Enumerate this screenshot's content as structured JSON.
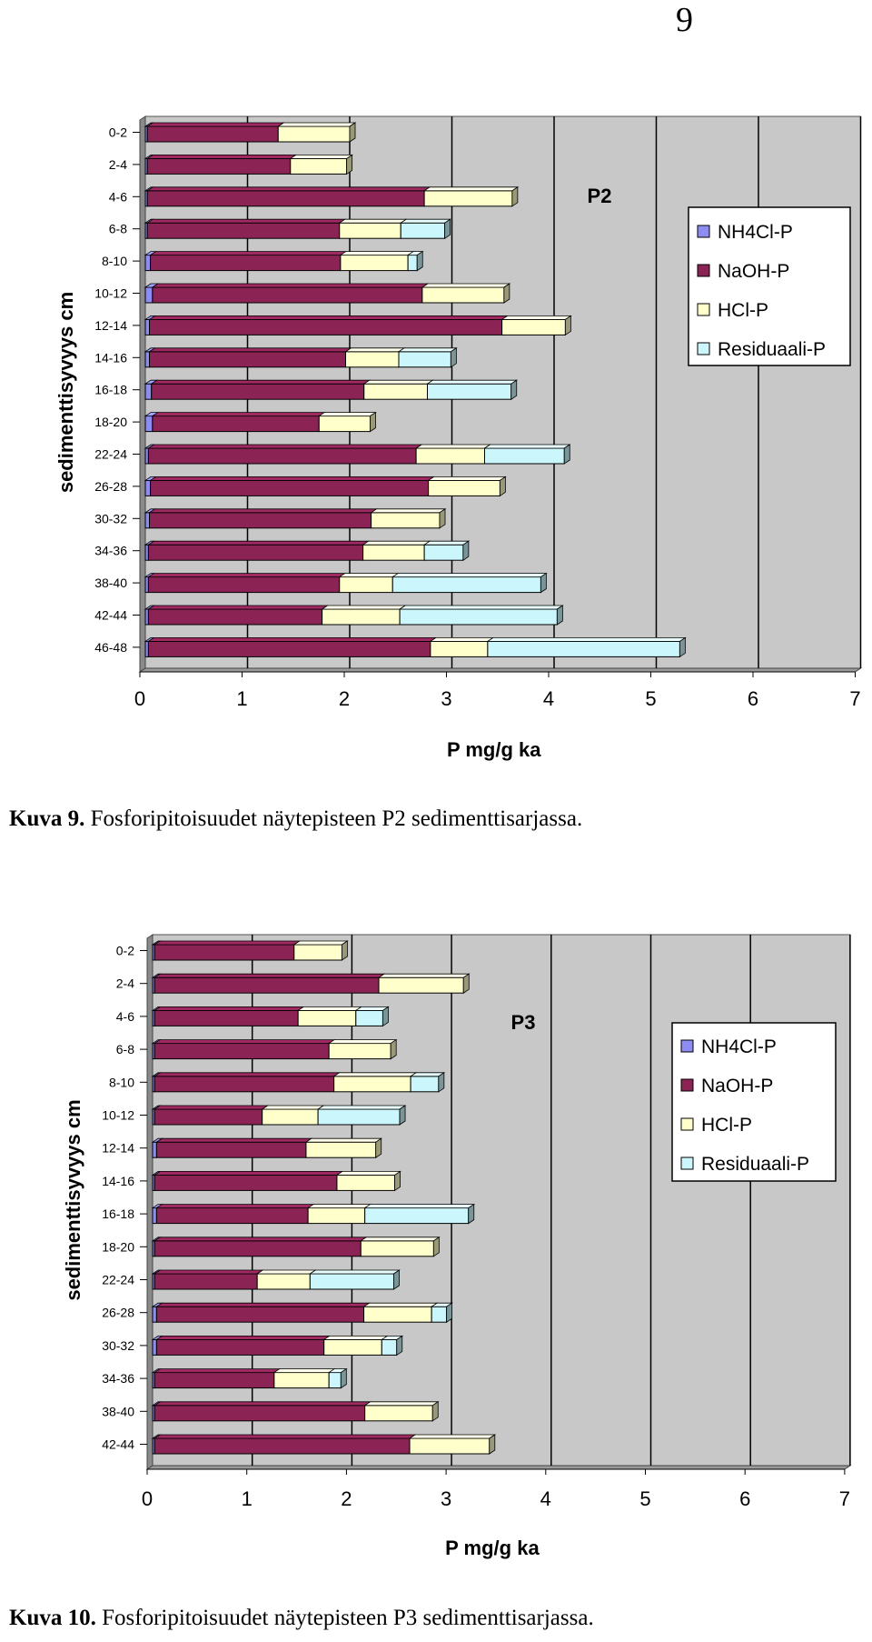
{
  "page": {
    "number": "9"
  },
  "captions": [
    {
      "label": "Kuva 9.",
      "text": " Fosforipitoisuudet näytepisteen P2 sedimenttisarjassa."
    },
    {
      "label": "Kuva 10.",
      "text": " Fosforipitoisuudet näytepisteen P3 sedimenttisarjassa."
    }
  ],
  "colors": {
    "NH4Cl-P": "#8c8cf2",
    "NaOH-P": "#8b2455",
    "HCl-P": "#ffffcc",
    "Residuaali-P": "#cbf6fb",
    "plot_bg": "#c8c8c8"
  },
  "chart_data": [
    {
      "type": "bar",
      "orientation": "horizontal",
      "stacked": true,
      "title": "P2",
      "xlabel": "P mg/g ka",
      "ylabel": "sedimenttisyvyys cm",
      "xlim": [
        0,
        7
      ],
      "xticks": [
        "0",
        "1",
        "2",
        "3",
        "4",
        "5",
        "6",
        "7"
      ],
      "legend": {
        "position": "right"
      },
      "categories": [
        "0-2",
        "2-4",
        "4-6",
        "6-8",
        "8-10",
        "10-12",
        "12-14",
        "14-16",
        "16-18",
        "18-20",
        "22-24",
        "26-28",
        "30-32",
        "34-36",
        "38-40",
        "42-44",
        "46-48"
      ],
      "series": [
        {
          "name": "NH4Cl-P",
          "values": [
            0.02,
            0.02,
            0.02,
            0.02,
            0.05,
            0.07,
            0.04,
            0.04,
            0.06,
            0.07,
            0.03,
            0.05,
            0.04,
            0.03,
            0.03,
            0.03,
            0.03
          ]
        },
        {
          "name": "NaOH-P",
          "values": [
            1.28,
            1.4,
            2.71,
            1.88,
            1.86,
            2.64,
            3.45,
            1.92,
            2.08,
            1.63,
            2.62,
            2.72,
            2.17,
            2.1,
            1.87,
            1.7,
            2.76
          ]
        },
        {
          "name": "HCl-P",
          "values": [
            0.7,
            0.55,
            0.86,
            0.6,
            0.66,
            0.8,
            0.62,
            0.52,
            0.62,
            0.5,
            0.67,
            0.7,
            0.67,
            0.6,
            0.52,
            0.76,
            0.56
          ]
        },
        {
          "name": "Residuaali-P",
          "values": [
            0,
            0,
            0,
            0.43,
            0.09,
            0,
            0,
            0.51,
            0.82,
            0,
            0.78,
            0,
            0,
            0.38,
            1.45,
            1.54,
            1.88
          ]
        }
      ]
    },
    {
      "type": "bar",
      "orientation": "horizontal",
      "stacked": true,
      "title": "P3",
      "xlabel": "P mg/g ka",
      "ylabel": "sedimenttisyvyys cm",
      "xlim": [
        0,
        7
      ],
      "xticks": [
        "0",
        "1",
        "2",
        "3",
        "4",
        "5",
        "6",
        "7"
      ],
      "legend": {
        "position": "right"
      },
      "categories": [
        "0-2",
        "2-4",
        "4-6",
        "6-8",
        "8-10",
        "10-12",
        "12-14",
        "14-16",
        "16-18",
        "18-20",
        "22-24",
        "26-28",
        "30-32",
        "34-36",
        "38-40",
        "42-44"
      ],
      "series": [
        {
          "name": "NH4Cl-P",
          "values": [
            0.02,
            0.02,
            0.02,
            0.02,
            0.02,
            0.02,
            0.04,
            0.02,
            0.04,
            0.02,
            0.02,
            0.04,
            0.04,
            0.02,
            0.02,
            0.02
          ]
        },
        {
          "name": "NaOH-P",
          "values": [
            1.4,
            2.25,
            1.44,
            1.75,
            1.8,
            1.08,
            1.5,
            1.83,
            1.52,
            2.07,
            1.03,
            2.08,
            1.68,
            1.2,
            2.11,
            2.56
          ]
        },
        {
          "name": "HCl-P",
          "values": [
            0.48,
            0.85,
            0.58,
            0.62,
            0.77,
            0.56,
            0.7,
            0.58,
            0.57,
            0.73,
            0.53,
            0.68,
            0.58,
            0.55,
            0.68,
            0.8
          ]
        },
        {
          "name": "Residuaali-P",
          "values": [
            0,
            0,
            0.27,
            0,
            0.28,
            0.82,
            0,
            0,
            1.04,
            0,
            0.84,
            0.15,
            0.15,
            0.12,
            0,
            0
          ]
        }
      ]
    }
  ]
}
